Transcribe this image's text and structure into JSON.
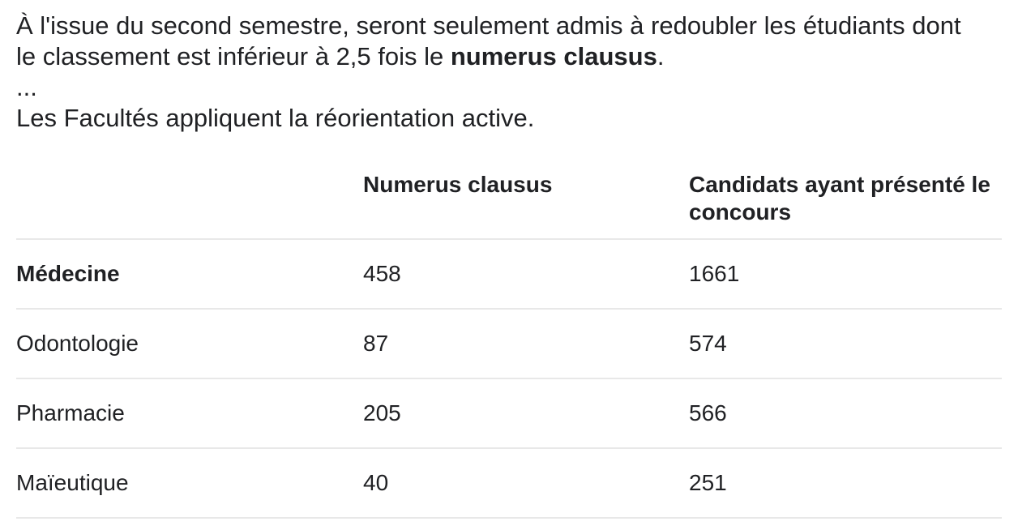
{
  "intro": {
    "sentence_before_bold": "À l'issue du second semestre, seront seulement admis à redoubler les étudiants dont le classement est inférieur à 2,5 fois le ",
    "bold_term": "numerus clausus",
    "sentence_after_bold": ".",
    "ellipsis_line": "...",
    "reorientation_line": "Les Facultés appliquent la réorientation active."
  },
  "table": {
    "headers": [
      "",
      "Numerus clausus",
      "Candidats ayant présenté le concours"
    ],
    "rows": [
      {
        "label": "Médecine",
        "numerus_clausus": "458",
        "candidats": "1661"
      },
      {
        "label": "Odontologie",
        "numerus_clausus": "87",
        "candidats": "574"
      },
      {
        "label": "Pharmacie",
        "numerus_clausus": "205",
        "candidats": "566"
      },
      {
        "label": "Maïeutique",
        "numerus_clausus": "40",
        "candidats": "251"
      }
    ]
  },
  "colors": {
    "text": "#202124",
    "divider": "#e8e8e8",
    "background": "#ffffff"
  }
}
